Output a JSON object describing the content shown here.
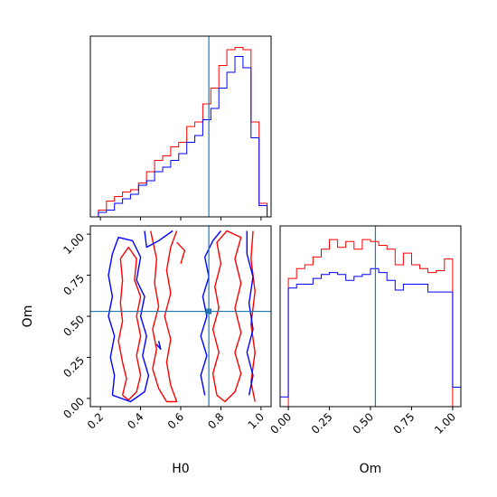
{
  "chart_data": {
    "type": "corner",
    "parameters": [
      "H0",
      "Om"
    ],
    "truth": {
      "H0": 0.74,
      "Om": 0.53
    },
    "colors": {
      "series_a": "#ff0000",
      "series_b": "#0000ff",
      "truth": "#1f77b4"
    },
    "panels": [
      {
        "id": "h0_marginal",
        "type": "histogram_step",
        "x_param": "H0",
        "xlim": [
          0.15,
          1.05
        ],
        "y_ticks_shown": false,
        "bin_edges": [
          0.15,
          0.19,
          0.23,
          0.27,
          0.31,
          0.35,
          0.39,
          0.43,
          0.47,
          0.51,
          0.55,
          0.59,
          0.63,
          0.67,
          0.71,
          0.75,
          0.79,
          0.83,
          0.87,
          0.91,
          0.95,
          0.99,
          1.03
        ],
        "series": [
          {
            "color_key": "series_a",
            "values": [
              0,
              0.03,
              0.07,
              0.09,
              0.11,
              0.12,
              0.15,
              0.2,
              0.25,
              0.27,
              0.31,
              0.33,
              0.4,
              0.42,
              0.5,
              0.57,
              0.67,
              0.74,
              0.75,
              0.74,
              0.42,
              0.06
            ]
          },
          {
            "color_key": "series_b",
            "values": [
              0,
              0.02,
              0.03,
              0.06,
              0.08,
              0.1,
              0.14,
              0.16,
              0.2,
              0.22,
              0.25,
              0.28,
              0.33,
              0.36,
              0.43,
              0.48,
              0.57,
              0.64,
              0.71,
              0.66,
              0.35,
              0.05
            ]
          }
        ]
      },
      {
        "id": "joint",
        "type": "contour",
        "x_param": "H0",
        "y_param": "Om",
        "xlim": [
          0.15,
          1.05
        ],
        "ylim": [
          -0.05,
          1.05
        ],
        "x_ticks": [
          "0.2",
          "0.4",
          "0.6",
          "0.8",
          "1.0"
        ],
        "y_ticks": [
          "0.00",
          "0.25",
          "0.50",
          "0.75",
          "1.00"
        ],
        "series": [
          {
            "color_key": "series_a",
            "contours": [
              [
                [
                  0.31,
                  0.02
                ],
                [
                  0.33,
                  0.12
                ],
                [
                  0.31,
                  0.22
                ],
                [
                  0.29,
                  0.35
                ],
                [
                  0.31,
                  0.47
                ],
                [
                  0.3,
                  0.58
                ],
                [
                  0.31,
                  0.72
                ],
                [
                  0.3,
                  0.85
                ],
                [
                  0.34,
                  0.92
                ],
                [
                  0.38,
                  0.85
                ],
                [
                  0.37,
                  0.72
                ],
                [
                  0.4,
                  0.62
                ],
                [
                  0.38,
                  0.5
                ],
                [
                  0.4,
                  0.38
                ],
                [
                  0.38,
                  0.26
                ],
                [
                  0.4,
                  0.14
                ],
                [
                  0.38,
                  0.04
                ],
                [
                  0.34,
                  -0.01
                ],
                [
                  0.31,
                  0.02
                ]
              ],
              [
                [
                  0.45,
                  1.02
                ],
                [
                  0.48,
                  0.85
                ],
                [
                  0.47,
                  0.7
                ],
                [
                  0.49,
                  0.56
                ],
                [
                  0.46,
                  0.42
                ],
                [
                  0.48,
                  0.3
                ],
                [
                  0.46,
                  0.18
                ],
                [
                  0.49,
                  0.06
                ],
                [
                  0.53,
                  -0.02
                ],
                [
                  0.58,
                  -0.02
                ],
                [
                  0.55,
                  0.08
                ],
                [
                  0.53,
                  0.22
                ],
                [
                  0.55,
                  0.36
                ],
                [
                  0.52,
                  0.5
                ],
                [
                  0.55,
                  0.64
                ],
                [
                  0.53,
                  0.78
                ],
                [
                  0.55,
                  0.92
                ],
                [
                  0.58,
                  1.02
                ]
              ],
              [
                [
                  0.78,
                  0.02
                ],
                [
                  0.76,
                  0.15
                ],
                [
                  0.79,
                  0.28
                ],
                [
                  0.76,
                  0.42
                ],
                [
                  0.79,
                  0.55
                ],
                [
                  0.77,
                  0.68
                ],
                [
                  0.8,
                  0.82
                ],
                [
                  0.78,
                  0.95
                ],
                [
                  0.83,
                  1.02
                ],
                [
                  0.9,
                  0.98
                ],
                [
                  0.87,
                  0.85
                ],
                [
                  0.9,
                  0.7
                ],
                [
                  0.87,
                  0.55
                ],
                [
                  0.9,
                  0.4
                ],
                [
                  0.87,
                  0.28
                ],
                [
                  0.9,
                  0.15
                ],
                [
                  0.87,
                  0.04
                ],
                [
                  0.82,
                  -0.02
                ],
                [
                  0.78,
                  0.02
                ]
              ],
              [
                [
                  0.96,
                  1.02
                ],
                [
                  0.95,
                  0.85
                ],
                [
                  0.97,
                  0.65
                ],
                [
                  0.95,
                  0.45
                ],
                [
                  0.97,
                  0.28
                ],
                [
                  0.95,
                  0.1
                ],
                [
                  0.97,
                  -0.02
                ]
              ],
              [
                [
                  0.58,
                  0.95
                ],
                [
                  0.62,
                  0.9
                ],
                [
                  0.6,
                  0.82
                ]
              ]
            ]
          },
          {
            "color_key": "series_b",
            "contours": [
              [
                [
                  0.26,
                  0.02
                ],
                [
                  0.27,
                  0.14
                ],
                [
                  0.25,
                  0.25
                ],
                [
                  0.27,
                  0.38
                ],
                [
                  0.24,
                  0.5
                ],
                [
                  0.26,
                  0.62
                ],
                [
                  0.24,
                  0.75
                ],
                [
                  0.26,
                  0.88
                ],
                [
                  0.29,
                  0.98
                ],
                [
                  0.36,
                  0.96
                ],
                [
                  0.4,
                  0.86
                ],
                [
                  0.38,
                  0.72
                ],
                [
                  0.42,
                  0.62
                ],
                [
                  0.4,
                  0.5
                ],
                [
                  0.43,
                  0.38
                ],
                [
                  0.41,
                  0.26
                ],
                [
                  0.44,
                  0.14
                ],
                [
                  0.42,
                  0.04
                ],
                [
                  0.35,
                  -0.02
                ],
                [
                  0.26,
                  0.02
                ]
              ],
              [
                [
                  0.42,
                  1.02
                ],
                [
                  0.43,
                  0.92
                ],
                [
                  0.49,
                  0.96
                ],
                [
                  0.56,
                  1.02
                ]
              ],
              [
                [
                  0.72,
                  0.02
                ],
                [
                  0.7,
                  0.14
                ],
                [
                  0.73,
                  0.26
                ],
                [
                  0.7,
                  0.38
                ],
                [
                  0.73,
                  0.5
                ],
                [
                  0.71,
                  0.62
                ],
                [
                  0.74,
                  0.74
                ],
                [
                  0.72,
                  0.86
                ],
                [
                  0.76,
                  0.96
                ],
                [
                  0.8,
                  1.02
                ]
              ],
              [
                [
                  0.93,
                  1.02
                ],
                [
                  0.93,
                  0.88
                ],
                [
                  0.96,
                  0.74
                ],
                [
                  0.94,
                  0.58
                ],
                [
                  0.96,
                  0.42
                ],
                [
                  0.93,
                  0.28
                ],
                [
                  0.96,
                  0.14
                ],
                [
                  0.94,
                  0.02
                ]
              ],
              [
                [
                  0.48,
                  0.33
                ],
                [
                  0.5,
                  0.3
                ],
                [
                  0.49,
                  0.35
                ]
              ]
            ]
          }
        ]
      },
      {
        "id": "om_marginal",
        "type": "histogram_step",
        "x_param": "Om",
        "xlim": [
          -0.05,
          1.05
        ],
        "x_ticks": [
          "0.00",
          "0.25",
          "0.50",
          "0.75",
          "1.00"
        ],
        "y_ticks_shown": false,
        "bin_edges": [
          -0.05,
          0.0,
          0.05,
          0.1,
          0.15,
          0.2,
          0.25,
          0.3,
          0.35,
          0.4,
          0.45,
          0.5,
          0.55,
          0.6,
          0.65,
          0.7,
          0.75,
          0.8,
          0.85,
          0.9,
          0.95,
          1.0,
          1.05
        ],
        "series": [
          {
            "color_key": "series_a",
            "values": [
              0,
              0.66,
              0.71,
              0.73,
              0.77,
              0.81,
              0.86,
              0.82,
              0.85,
              0.81,
              0.86,
              0.85,
              0.83,
              0.81,
              0.73,
              0.79,
              0.73,
              0.71,
              0.69,
              0.7,
              0.76,
              0
            ]
          },
          {
            "color_key": "series_b",
            "values": [
              0.05,
              0.61,
              0.63,
              0.63,
              0.66,
              0.68,
              0.69,
              0.68,
              0.65,
              0.67,
              0.68,
              0.71,
              0.69,
              0.65,
              0.6,
              0.63,
              0.63,
              0.63,
              0.59,
              0.59,
              0.59,
              0.1
            ]
          }
        ]
      }
    ],
    "xlabels": [
      "H0",
      "Om"
    ],
    "ylabel": "Om"
  }
}
